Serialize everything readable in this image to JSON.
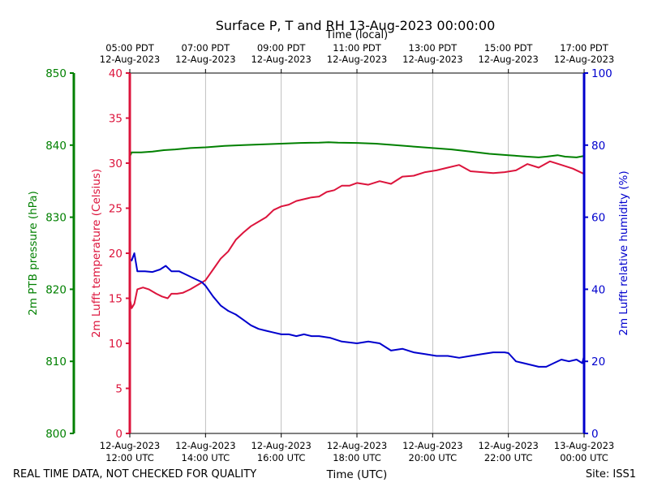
{
  "chart_data": {
    "type": "line",
    "title": "Surface P, T and RH 13-Aug-2023 00:00:00",
    "top_axis_label": "Time (local)",
    "top_ticks": [
      {
        "hour": 12,
        "label1": "05:00 PDT",
        "label2": "12-Aug-2023"
      },
      {
        "hour": 14,
        "label1": "07:00 PDT",
        "label2": "12-Aug-2023"
      },
      {
        "hour": 16,
        "label1": "09:00 PDT",
        "label2": "12-Aug-2023"
      },
      {
        "hour": 18,
        "label1": "11:00 PDT",
        "label2": "12-Aug-2023"
      },
      {
        "hour": 20,
        "label1": "13:00 PDT",
        "label2": "12-Aug-2023"
      },
      {
        "hour": 22,
        "label1": "15:00 PDT",
        "label2": "12-Aug-2023"
      },
      {
        "hour": 24,
        "label1": "17:00 PDT",
        "label2": "12-Aug-2023"
      }
    ],
    "xlabel": "Time (UTC)",
    "xlim_hours": [
      12,
      24
    ],
    "x_ticks": [
      {
        "hour": 12,
        "label1": "12-Aug-2023",
        "label2": "12:00 UTC"
      },
      {
        "hour": 14,
        "label1": "12-Aug-2023",
        "label2": "14:00 UTC"
      },
      {
        "hour": 16,
        "label1": "12-Aug-2023",
        "label2": "16:00 UTC"
      },
      {
        "hour": 18,
        "label1": "12-Aug-2023",
        "label2": "18:00 UTC"
      },
      {
        "hour": 20,
        "label1": "12-Aug-2023",
        "label2": "20:00 UTC"
      },
      {
        "hour": 22,
        "label1": "12-Aug-2023",
        "label2": "22:00 UTC"
      },
      {
        "hour": 24,
        "label1": "13-Aug-2023",
        "label2": "00:00 UTC"
      }
    ],
    "grid": "vertical",
    "axes": {
      "pressure": {
        "label": "2m PTB pressure (hPa)",
        "color": "#008000",
        "ylim": [
          800,
          850
        ],
        "ticks": [
          800,
          810,
          820,
          830,
          840,
          850
        ]
      },
      "temperature": {
        "label": "2m Lufft temperature (Celsius)",
        "color": "#dc143c",
        "ylim": [
          0,
          40
        ],
        "ticks": [
          0,
          5,
          10,
          15,
          20,
          25,
          30,
          35,
          40
        ]
      },
      "humidity": {
        "label": "2m Lufft relative humidity (%)",
        "color": "#0000cd",
        "ylim": [
          0,
          100
        ],
        "ticks": [
          0,
          20,
          40,
          60,
          80,
          100
        ]
      }
    },
    "series": [
      {
        "name": "2m PTB pressure (hPa)",
        "axis": "pressure",
        "color": "#008000",
        "x": [
          12.0,
          12.05,
          12.3,
          12.6,
          12.9,
          13.2,
          13.6,
          14.0,
          14.5,
          15.0,
          15.5,
          16.0,
          16.5,
          17.0,
          17.25,
          17.5,
          18.0,
          18.5,
          19.0,
          19.5,
          20.0,
          20.5,
          21.0,
          21.5,
          22.0,
          22.5,
          22.8,
          23.0,
          23.3,
          23.5,
          23.8,
          24.0
        ],
        "values": [
          838.4,
          839.0,
          839.0,
          839.1,
          839.3,
          839.4,
          839.6,
          839.7,
          839.9,
          840.0,
          840.1,
          840.2,
          840.3,
          840.35,
          840.4,
          840.35,
          840.3,
          840.2,
          840.0,
          839.8,
          839.6,
          839.4,
          839.1,
          838.8,
          838.6,
          838.4,
          838.3,
          838.4,
          838.6,
          838.4,
          838.3,
          838.5
        ]
      },
      {
        "name": "2m Lufft temperature (Celsius)",
        "axis": "temperature",
        "color": "#dc143c",
        "x": [
          12.0,
          12.05,
          12.12,
          12.2,
          12.35,
          12.5,
          12.7,
          12.85,
          13.0,
          13.1,
          13.25,
          13.4,
          13.6,
          13.8,
          14.0,
          14.2,
          14.4,
          14.6,
          14.8,
          15.0,
          15.2,
          15.4,
          15.6,
          15.8,
          16.0,
          16.2,
          16.4,
          16.6,
          16.8,
          17.0,
          17.2,
          17.4,
          17.6,
          17.8,
          18.0,
          18.3,
          18.6,
          18.9,
          19.2,
          19.5,
          19.8,
          20.1,
          20.4,
          20.7,
          21.0,
          21.3,
          21.6,
          21.9,
          22.2,
          22.5,
          22.8,
          23.1,
          23.4,
          23.7,
          24.0
        ],
        "values": [
          15.0,
          13.9,
          14.4,
          16.0,
          16.2,
          16.0,
          15.5,
          15.2,
          15.0,
          15.5,
          15.5,
          15.6,
          16.0,
          16.5,
          17.0,
          18.2,
          19.4,
          20.2,
          21.5,
          22.3,
          23.0,
          23.5,
          24.0,
          24.8,
          25.2,
          25.4,
          25.8,
          26.0,
          26.2,
          26.3,
          26.8,
          27.0,
          27.5,
          27.5,
          27.8,
          27.6,
          28.0,
          27.7,
          28.5,
          28.6,
          29.0,
          29.2,
          29.5,
          29.8,
          29.1,
          29.0,
          28.9,
          29.0,
          29.2,
          29.9,
          29.5,
          30.2,
          29.8,
          29.4,
          28.8
        ]
      },
      {
        "name": "2m Lufft relative humidity (%)",
        "axis": "humidity",
        "color": "#0000cd",
        "x": [
          12.0,
          12.05,
          12.12,
          12.2,
          12.4,
          12.6,
          12.8,
          12.95,
          13.1,
          13.3,
          13.5,
          13.7,
          13.9,
          14.0,
          14.2,
          14.4,
          14.6,
          14.8,
          15.0,
          15.2,
          15.4,
          15.6,
          15.8,
          16.0,
          16.2,
          16.4,
          16.6,
          16.8,
          17.0,
          17.3,
          17.6,
          18.0,
          18.3,
          18.6,
          18.9,
          19.2,
          19.5,
          19.8,
          20.1,
          20.4,
          20.7,
          21.0,
          21.3,
          21.6,
          21.9,
          22.0,
          22.2,
          22.4,
          22.6,
          22.8,
          23.0,
          23.2,
          23.4,
          23.6,
          23.8,
          23.95,
          24.0
        ],
        "values": [
          48.5,
          48.0,
          50.0,
          45.0,
          45.0,
          44.8,
          45.5,
          46.5,
          45.0,
          45.0,
          44.0,
          43.0,
          42.0,
          41.0,
          38.0,
          35.5,
          34.0,
          33.0,
          31.5,
          30.0,
          29.0,
          28.5,
          28.0,
          27.5,
          27.5,
          27.0,
          27.5,
          27.0,
          27.0,
          26.5,
          25.5,
          25.0,
          25.5,
          25.0,
          23.0,
          23.5,
          22.5,
          22.0,
          21.5,
          21.5,
          21.0,
          21.5,
          22.0,
          22.5,
          22.5,
          22.3,
          20.0,
          19.5,
          19.0,
          18.5,
          18.5,
          19.5,
          20.5,
          20.0,
          20.5,
          19.5,
          21.5
        ]
      }
    ]
  },
  "footer": {
    "left": "REAL TIME DATA, NOT CHECKED FOR QUALITY",
    "right": "Site: ISS1"
  }
}
